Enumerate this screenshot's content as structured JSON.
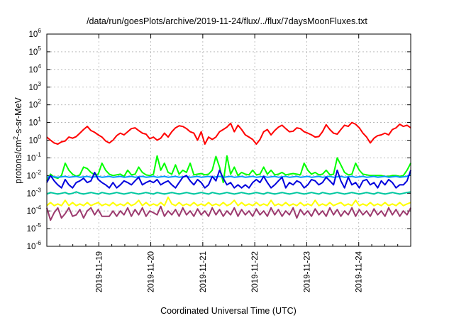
{
  "chart_data": {
    "type": "line",
    "title": "/data/run/goesPlots/archive/2019-11-24/flux/../flux/7daysMoonFluxes.txt",
    "xlabel": "Coordinated Universal Time (UTC)",
    "ylabel": "protons/cm²-s-sr-MeV",
    "yscale": "log",
    "ylim": [
      1e-06,
      1000000.0
    ],
    "xlim": [
      "2019-11-18T00:00",
      "2019-11-25T00:00"
    ],
    "grid": true,
    "legend": "none",
    "x_ticks": [
      "2019-11-19",
      "2019-11-20",
      "2019-11-21",
      "2019-11-22",
      "2019-11-23",
      "2019-11-24"
    ],
    "y_ticks": [
      {
        "base": "10",
        "exp": "-6"
      },
      {
        "base": "10",
        "exp": "-5"
      },
      {
        "base": "10",
        "exp": "-4"
      },
      {
        "base": "10",
        "exp": "-3"
      },
      {
        "base": "10",
        "exp": "-2"
      },
      {
        "base": "10",
        "exp": "-1"
      },
      {
        "base": "10",
        "exp": "0"
      },
      {
        "base": "10",
        "exp": "1"
      },
      {
        "base": "10",
        "exp": "2"
      },
      {
        "base": "10",
        "exp": "3"
      },
      {
        "base": "10",
        "exp": "4"
      },
      {
        "base": "10",
        "exp": "5"
      },
      {
        "base": "10",
        "exp": "6"
      }
    ],
    "series": [
      {
        "color": "#ff0000",
        "values": [
          1.5,
          1.0,
          0.7,
          0.6,
          0.8,
          0.9,
          1.5,
          1.3,
          1.6,
          2.5,
          4.0,
          6.0,
          3.5,
          2.8,
          2.0,
          1.5,
          0.9,
          0.7,
          1.0,
          1.8,
          2.5,
          2.0,
          3.0,
          4.5,
          5.0,
          3.5,
          2.5,
          2.2,
          1.2,
          1.5,
          1.0,
          1.3,
          2.5,
          1.5,
          3.0,
          5.0,
          6.5,
          6.0,
          4.5,
          3.0,
          2.5,
          1.0,
          3.0,
          0.6,
          1.5,
          1.1,
          1.5,
          3.0,
          4.0,
          5.5,
          9.0,
          3.0,
          7.0,
          4.0,
          2.0,
          1.5,
          1.1,
          0.6,
          1.1,
          3.0,
          4.0,
          2.0,
          3.5,
          5.5,
          7.0,
          4.5,
          3.0,
          3.2,
          5.0,
          4.5,
          3.0,
          2.5,
          2.0,
          1.5,
          1.6,
          3.0,
          7.5,
          4.0,
          2.5,
          2.2,
          4.0,
          7.0,
          6.0,
          10.0,
          8.0,
          5.0,
          2.5,
          1.5,
          0.7,
          1.3,
          1.8,
          2.0,
          2.5,
          2.0,
          4.0,
          5.0,
          8.0,
          6.0,
          7.0,
          5.0
        ]
      },
      {
        "color": "#00ff00",
        "values": [
          0.005,
          0.012,
          0.008,
          0.007,
          0.01,
          0.05,
          0.02,
          0.012,
          0.009,
          0.011,
          0.03,
          0.025,
          0.015,
          0.011,
          0.012,
          0.05,
          0.02,
          0.012,
          0.01,
          0.011,
          0.012,
          0.009,
          0.02,
          0.011,
          0.012,
          0.03,
          0.015,
          0.011,
          0.01,
          0.012,
          0.13,
          0.02,
          0.05,
          0.015,
          0.012,
          0.04,
          0.012,
          0.02,
          0.015,
          0.05,
          0.011,
          0.012,
          0.013,
          0.011,
          0.012,
          0.02,
          0.12,
          0.03,
          0.004,
          0.13,
          0.012,
          0.03,
          0.01,
          0.015,
          0.012,
          0.011,
          0.02,
          0.011,
          0.012,
          0.03,
          0.012,
          0.02,
          0.011,
          0.012,
          0.015,
          0.011,
          0.012,
          0.013,
          0.012,
          0.011,
          0.05,
          0.02,
          0.012,
          0.015,
          0.011,
          0.012,
          0.02,
          0.011,
          0.012,
          0.1,
          0.04,
          0.015,
          0.011,
          0.012,
          0.05,
          0.02,
          0.012,
          0.011,
          0.01,
          0.01,
          0.01,
          0.01,
          0.009,
          0.009,
          0.01,
          0.01,
          0.009,
          0.01,
          0.02,
          0.05
        ]
      },
      {
        "color": "#0099ff",
        "values": [
          0.008,
          0.009,
          0.0085,
          0.008,
          0.0085,
          0.009,
          0.008,
          0.0085,
          0.009,
          0.008,
          0.0085,
          0.009,
          0.008,
          0.0085,
          0.009,
          0.008,
          0.0085,
          0.009,
          0.008,
          0.0085,
          0.009,
          0.008,
          0.0085,
          0.009,
          0.008,
          0.0085,
          0.009,
          0.008,
          0.0085,
          0.009,
          0.008,
          0.0085,
          0.009,
          0.008,
          0.0085,
          0.009,
          0.008,
          0.0085,
          0.009,
          0.008,
          0.0085,
          0.009,
          0.008,
          0.0085,
          0.009,
          0.008,
          0.0085,
          0.009,
          0.008,
          0.0085,
          0.009,
          0.008,
          0.0085,
          0.009,
          0.008,
          0.0085,
          0.009,
          0.008,
          0.0085,
          0.009,
          0.008,
          0.0085,
          0.009,
          0.008,
          0.0085,
          0.009,
          0.008,
          0.0085,
          0.009,
          0.008,
          0.0085,
          0.009,
          0.008,
          0.0085,
          0.009,
          0.008,
          0.0085,
          0.009,
          0.008,
          0.0085,
          0.009,
          0.008,
          0.0085,
          0.009,
          0.008,
          0.0085,
          0.009,
          0.008,
          0.0085,
          0.009,
          0.008,
          0.0085,
          0.009,
          0.008,
          0.0085,
          0.009,
          0.008,
          0.0085,
          0.009,
          0.012
        ]
      },
      {
        "color": "#0000dd",
        "values": [
          0.004,
          0.01,
          0.005,
          0.003,
          0.002,
          0.006,
          0.003,
          0.002,
          0.004,
          0.005,
          0.007,
          0.004,
          0.005,
          0.015,
          0.006,
          0.004,
          0.003,
          0.002,
          0.004,
          0.002,
          0.003,
          0.005,
          0.004,
          0.003,
          0.005,
          0.008,
          0.003,
          0.004,
          0.005,
          0.004,
          0.006,
          0.003,
          0.004,
          0.005,
          0.003,
          0.002,
          0.004,
          0.008,
          0.01,
          0.005,
          0.003,
          0.006,
          0.004,
          0.002,
          0.003,
          0.009,
          0.005,
          0.02,
          0.007,
          0.003,
          0.004,
          0.002,
          0.003,
          0.002,
          0.003,
          0.002,
          0.004,
          0.006,
          0.004,
          0.009,
          0.004,
          0.002,
          0.003,
          0.005,
          0.008,
          0.002,
          0.004,
          0.003,
          0.005,
          0.004,
          0.002,
          0.003,
          0.006,
          0.005,
          0.003,
          0.004,
          0.008,
          0.005,
          0.003,
          0.02,
          0.005,
          0.002,
          0.008,
          0.003,
          0.004,
          0.002,
          0.005,
          0.006,
          0.003,
          0.004,
          0.002,
          0.005,
          0.003,
          0.006,
          0.004,
          0.002,
          0.003,
          0.003,
          0.005,
          0.02
        ]
      },
      {
        "color": "#00c8a0",
        "values": [
          0.0009,
          0.0011,
          0.001,
          0.0009,
          0.001,
          0.0011,
          0.0009,
          0.001,
          0.0012,
          0.001,
          0.0009,
          0.001,
          0.0011,
          0.001,
          0.0009,
          0.0011,
          0.001,
          0.0009,
          0.001,
          0.0011,
          0.001,
          0.0009,
          0.001,
          0.0011,
          0.001,
          0.0009,
          0.001,
          0.0011,
          0.001,
          0.0009,
          0.0011,
          0.001,
          0.0009,
          0.001,
          0.0011,
          0.001,
          0.0009,
          0.001,
          0.0011,
          0.001,
          0.0009,
          0.001,
          0.0011,
          0.001,
          0.0009,
          0.0011,
          0.001,
          0.0009,
          0.001,
          0.0011,
          0.001,
          0.0009,
          0.001,
          0.0011,
          0.001,
          0.0009,
          0.001,
          0.0011,
          0.001,
          0.0009,
          0.0011,
          0.001,
          0.0009,
          0.001,
          0.0011,
          0.001,
          0.0009,
          0.001,
          0.0011,
          0.001,
          0.0009,
          0.001,
          0.0011,
          0.001,
          0.0009,
          0.0011,
          0.001,
          0.0009,
          0.001,
          0.0011,
          0.001,
          0.0009,
          0.001,
          0.0011,
          0.001,
          0.0009,
          0.001,
          0.0011,
          0.001,
          0.0009,
          0.0011,
          0.001,
          0.0009,
          0.001,
          0.0011,
          0.001,
          0.0009,
          0.001,
          0.0011,
          0.0012
        ]
      },
      {
        "color": "#ffff00",
        "values": [
          0.0002,
          0.0003,
          0.0002,
          0.00025,
          0.0002,
          0.0004,
          0.0002,
          0.0003,
          0.0002,
          0.00025,
          0.0002,
          0.0003,
          0.0002,
          0.00025,
          0.0003,
          0.0002,
          0.00025,
          0.0002,
          0.0003,
          0.0002,
          0.00025,
          0.0002,
          0.0003,
          0.0002,
          0.00025,
          0.0004,
          0.0002,
          0.0003,
          0.0002,
          0.00025,
          0.0002,
          0.0003,
          0.0002,
          0.0006,
          0.00025,
          0.0002,
          0.0003,
          0.0002,
          0.00025,
          0.0002,
          0.0003,
          0.0002,
          0.00025,
          0.0002,
          0.0003,
          0.0002,
          0.00025,
          0.0002,
          0.0003,
          0.0002,
          0.00025,
          0.0004,
          0.0002,
          0.0003,
          0.0002,
          0.00025,
          0.0002,
          0.0003,
          0.0002,
          0.00025,
          0.0002,
          0.0004,
          0.0002,
          0.00025,
          0.0002,
          0.0003,
          0.0002,
          0.00025,
          0.0002,
          0.0003,
          0.0002,
          0.00025,
          0.0002,
          0.0004,
          0.0002,
          0.00025,
          0.0002,
          0.0003,
          0.0002,
          0.00025,
          0.0003,
          0.0002,
          0.00025,
          0.0002,
          0.0004,
          0.0002,
          0.00025,
          0.0002,
          0.0003,
          0.0002,
          0.00025,
          0.0002,
          0.0003,
          0.0002,
          0.00025,
          0.0002,
          0.0003,
          0.0002,
          0.00025,
          0.0003
        ]
      },
      {
        "color": "#9c3a6e",
        "values": [
          0.00015,
          3e-05,
          8e-05,
          0.00015,
          4e-05,
          7e-05,
          0.00015,
          5e-05,
          6e-05,
          0.00012,
          4e-05,
          0.0001,
          0.00015,
          6e-05,
          0.00012,
          5e-05,
          5e-05,
          5e-05,
          0.0001,
          5e-05,
          0.0001,
          6e-05,
          0.00015,
          5e-05,
          0.00012,
          6e-05,
          0.00015,
          5e-05,
          0.0001,
          8e-05,
          6e-05,
          0.00018,
          5e-05,
          0.0001,
          6e-05,
          0.00012,
          5e-05,
          0.00015,
          6e-05,
          0.0001,
          5e-05,
          0.00013,
          6e-05,
          0.0001,
          5e-05,
          0.00015,
          6e-05,
          0.00012,
          5e-05,
          0.0001,
          6e-05,
          0.00015,
          5e-05,
          0.00012,
          6e-05,
          0.0001,
          5e-05,
          0.00013,
          6e-05,
          0.0001,
          5e-05,
          0.00015,
          6e-05,
          0.00012,
          5e-05,
          0.0001,
          6e-05,
          0.00015,
          4e-05,
          0.00012,
          6e-05,
          0.0001,
          5e-05,
          0.00013,
          6e-05,
          0.0001,
          5e-05,
          0.00015,
          6e-05,
          0.00012,
          5e-05,
          0.0001,
          6e-05,
          0.00015,
          5e-05,
          0.00012,
          6e-05,
          0.0001,
          5e-05,
          0.00013,
          6e-05,
          0.0001,
          5e-05,
          0.00015,
          6e-05,
          0.00012,
          5e-05,
          0.0001,
          6e-05,
          0.00015
        ]
      }
    ]
  }
}
